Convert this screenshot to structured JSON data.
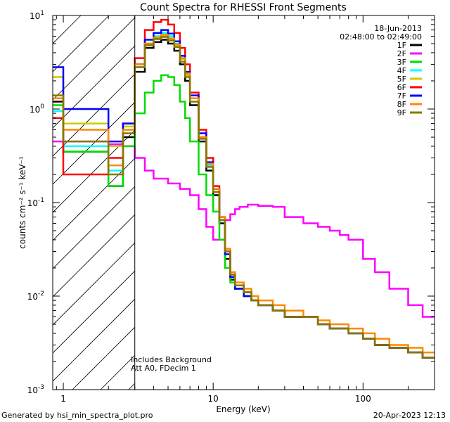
{
  "chart_data": {
    "type": "line",
    "title": "Count Spectra for RHESSI Front Segments",
    "date": "18-Jun-2013",
    "time_range": "02:48:00 to 02:49:00",
    "xlabel": "Energy (keV)",
    "ylabel": "counts cm⁻² s⁻¹ keV⁻¹",
    "xscale": "log",
    "yscale": "log",
    "xlim": [
      0.85,
      300
    ],
    "ylim": [
      0.001,
      10
    ],
    "x_ticks": [
      {
        "v": 1,
        "label": "1"
      },
      {
        "v": 10,
        "label": "10"
      },
      {
        "v": 100,
        "label": "100"
      }
    ],
    "y_ticks": [
      {
        "v": 10,
        "base": "10",
        "exp": "1"
      },
      {
        "v": 1,
        "base": "10",
        "exp": "0"
      },
      {
        "v": 0.1,
        "base": "10",
        "exp": "-1"
      },
      {
        "v": 0.01,
        "base": "10",
        "exp": "-2"
      },
      {
        "v": 0.001,
        "base": "10",
        "exp": "-3"
      }
    ],
    "excluded_region": {
      "from": 0.85,
      "to": 3.0,
      "style": "hatched"
    },
    "annotations": [
      "Includes Background",
      "Att A0, FDecim 1"
    ],
    "series": [
      {
        "name": "1F",
        "color": "#000000",
        "x": [
          1,
          2,
          2.5,
          3,
          3.5,
          4,
          4.5,
          5,
          5.5,
          6,
          6.5,
          7,
          8,
          9,
          10,
          11,
          12,
          13,
          14,
          16,
          18,
          20,
          25,
          30,
          40,
          50,
          60,
          80,
          100,
          120,
          150,
          200,
          250,
          300
        ],
        "y": [
          1.2,
          0.35,
          0.15,
          0.5,
          2.5,
          4.5,
          5.2,
          5.5,
          5.0,
          4.2,
          3.0,
          2.0,
          1.1,
          0.45,
          0.22,
          0.12,
          0.06,
          0.025,
          0.015,
          0.012,
          0.01,
          0.009,
          0.008,
          0.007,
          0.006,
          0.006,
          0.005,
          0.0045,
          0.004,
          0.0035,
          0.003,
          0.0028,
          0.0025,
          0.0022
        ]
      },
      {
        "name": "2F",
        "color": "#ff00ff",
        "x": [
          1,
          2,
          2.5,
          3,
          3.5,
          4,
          5,
          6,
          7,
          8,
          9,
          10,
          11,
          12,
          13,
          14,
          15,
          17,
          20,
          25,
          30,
          40,
          50,
          60,
          70,
          80,
          100,
          120,
          150,
          200,
          250,
          300
        ],
        "y": [
          0.45,
          0.45,
          0.42,
          0.4,
          0.3,
          0.22,
          0.18,
          0.16,
          0.14,
          0.12,
          0.085,
          0.055,
          0.04,
          0.04,
          0.065,
          0.075,
          0.085,
          0.09,
          0.095,
          0.092,
          0.09,
          0.07,
          0.06,
          0.055,
          0.05,
          0.045,
          0.04,
          0.025,
          0.018,
          0.012,
          0.008,
          0.006
        ]
      },
      {
        "name": "3F",
        "color": "#00dd00",
        "x": [
          1,
          2,
          2.5,
          3,
          3.5,
          4,
          4.5,
          5,
          5.5,
          6,
          6.5,
          7,
          8,
          9,
          10,
          11,
          12,
          13,
          14,
          16,
          18,
          20,
          25,
          30,
          40,
          50,
          60,
          80,
          100,
          120,
          150,
          200,
          250,
          300
        ],
        "y": [
          1.1,
          0.35,
          0.15,
          0.4,
          0.9,
          1.5,
          2.0,
          2.3,
          2.2,
          1.8,
          1.2,
          0.8,
          0.45,
          0.2,
          0.12,
          0.08,
          0.04,
          0.02,
          0.014,
          0.012,
          0.01,
          0.009,
          0.008,
          0.007,
          0.006,
          0.006,
          0.005,
          0.0045,
          0.004,
          0.0035,
          0.003,
          0.0028,
          0.0025,
          0.0022
        ]
      },
      {
        "name": "4F",
        "color": "#00ffff",
        "x": [
          1,
          2,
          2.5,
          3,
          3.5,
          4,
          4.5,
          5,
          5.5,
          6,
          6.5,
          7,
          8,
          9,
          10,
          11,
          12,
          13,
          14,
          16,
          18,
          20,
          25,
          30,
          40,
          50,
          60,
          80,
          100,
          120,
          150,
          200,
          250,
          300
        ],
        "y": [
          0.95,
          0.4,
          0.22,
          0.6,
          2.8,
          5.0,
          6.0,
          6.5,
          6.0,
          5.0,
          3.5,
          2.3,
          1.3,
          0.5,
          0.25,
          0.13,
          0.065,
          0.03,
          0.017,
          0.013,
          0.011,
          0.009,
          0.008,
          0.007,
          0.006,
          0.006,
          0.005,
          0.0045,
          0.004,
          0.0035,
          0.003,
          0.0028,
          0.0025,
          0.0022
        ]
      },
      {
        "name": "5F",
        "color": "#cccc00",
        "x": [
          1,
          2,
          2.5,
          3,
          3.5,
          4,
          4.5,
          5,
          5.5,
          6,
          6.5,
          7,
          8,
          9,
          10,
          11,
          12,
          13,
          14,
          16,
          18,
          20,
          25,
          30,
          40,
          50,
          60,
          80,
          100,
          120,
          150,
          200,
          250,
          300
        ],
        "y": [
          2.2,
          0.7,
          0.4,
          0.65,
          3.0,
          5.0,
          5.8,
          6.0,
          5.6,
          4.8,
          3.4,
          2.3,
          1.3,
          0.5,
          0.26,
          0.14,
          0.07,
          0.03,
          0.017,
          0.013,
          0.011,
          0.009,
          0.008,
          0.007,
          0.006,
          0.006,
          0.005,
          0.0045,
          0.004,
          0.0035,
          0.003,
          0.0028,
          0.0025,
          0.0022
        ]
      },
      {
        "name": "6F",
        "color": "#ff0000",
        "x": [
          1,
          2,
          2.5,
          3,
          3.5,
          4,
          4.5,
          5,
          5.5,
          6,
          6.5,
          7,
          8,
          9,
          10,
          11,
          12,
          13,
          14,
          16,
          18,
          20,
          25,
          30,
          40,
          50,
          60,
          80,
          100,
          120,
          150,
          200,
          250,
          300
        ],
        "y": [
          0.8,
          0.2,
          0.3,
          0.7,
          3.5,
          7.0,
          8.5,
          9.0,
          8.0,
          6.5,
          4.5,
          3.0,
          1.5,
          0.6,
          0.3,
          0.15,
          0.07,
          0.03,
          0.017,
          0.013,
          0.011,
          0.009,
          0.008,
          0.007,
          0.006,
          0.006,
          0.005,
          0.0045,
          0.004,
          0.0035,
          0.003,
          0.0028,
          0.0025,
          0.0022
        ]
      },
      {
        "name": "7F",
        "color": "#0000ff",
        "x": [
          1,
          2,
          2.5,
          3,
          3.5,
          4,
          4.5,
          5,
          5.5,
          6,
          6.5,
          7,
          8,
          9,
          10,
          11,
          12,
          13,
          14,
          16,
          18,
          20,
          25,
          30,
          40,
          50,
          60,
          80,
          100,
          120,
          150,
          200,
          250,
          300
        ],
        "y": [
          2.8,
          1.0,
          0.45,
          0.7,
          3.0,
          5.5,
          6.5,
          7.0,
          6.4,
          5.3,
          3.7,
          2.5,
          1.4,
          0.55,
          0.27,
          0.14,
          0.065,
          0.028,
          0.016,
          0.012,
          0.01,
          0.009,
          0.008,
          0.007,
          0.006,
          0.006,
          0.005,
          0.0045,
          0.004,
          0.0035,
          0.003,
          0.0028,
          0.0025,
          0.0022
        ]
      },
      {
        "name": "8F",
        "color": "#ff8800",
        "x": [
          1,
          2,
          2.5,
          3,
          3.5,
          4,
          4.5,
          5,
          5.5,
          6,
          6.5,
          7,
          8,
          9,
          10,
          11,
          12,
          13,
          14,
          16,
          18,
          20,
          25,
          30,
          40,
          50,
          60,
          80,
          100,
          120,
          150,
          200,
          250,
          300
        ],
        "y": [
          1.3,
          0.6,
          0.25,
          0.6,
          3.0,
          5.0,
          5.8,
          6.2,
          5.7,
          4.9,
          3.5,
          2.4,
          1.3,
          0.5,
          0.26,
          0.14,
          0.07,
          0.032,
          0.018,
          0.014,
          0.012,
          0.01,
          0.009,
          0.008,
          0.007,
          0.006,
          0.0055,
          0.005,
          0.0045,
          0.004,
          0.0035,
          0.003,
          0.0028,
          0.0025
        ]
      },
      {
        "name": "9F",
        "color": "#887700",
        "x": [
          1,
          2,
          2.5,
          3,
          3.5,
          4,
          4.5,
          5,
          5.5,
          6,
          6.5,
          7,
          8,
          9,
          10,
          11,
          12,
          13,
          14,
          16,
          18,
          20,
          25,
          30,
          40,
          50,
          60,
          80,
          100,
          120,
          150,
          200,
          250,
          300
        ],
        "y": [
          1.4,
          0.45,
          0.2,
          0.55,
          2.8,
          4.8,
          5.6,
          5.9,
          5.4,
          4.6,
          3.2,
          2.2,
          1.2,
          0.48,
          0.24,
          0.13,
          0.065,
          0.03,
          0.017,
          0.013,
          0.011,
          0.009,
          0.008,
          0.007,
          0.006,
          0.006,
          0.005,
          0.0045,
          0.004,
          0.0035,
          0.003,
          0.0028,
          0.0025,
          0.0022
        ]
      }
    ]
  },
  "footer": {
    "generated_by": "Generated by hsi_min_spectra_plot.pro",
    "timestamp": "20-Apr-2023 12:13"
  }
}
